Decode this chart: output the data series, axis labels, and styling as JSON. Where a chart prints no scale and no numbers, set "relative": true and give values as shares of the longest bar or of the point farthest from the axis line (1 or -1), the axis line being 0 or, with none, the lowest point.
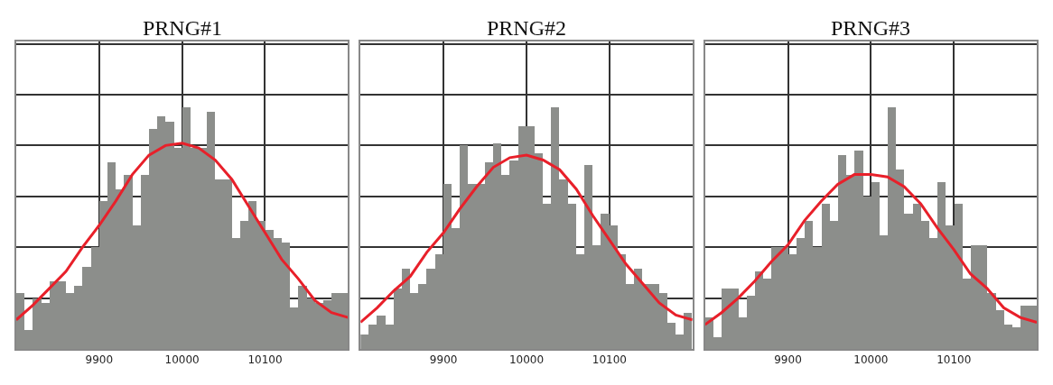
{
  "chart_data": [
    {
      "type": "histogram",
      "title": "PRNG#1",
      "relative": true,
      "xlim": [
        9800,
        10200
      ],
      "xticks": [
        9900,
        10000,
        10100
      ],
      "grid": true,
      "color": "#8c8e8b",
      "bins": [
        9800,
        9810,
        9820,
        9830,
        9840,
        9850,
        9860,
        9870,
        9880,
        9890,
        9900,
        9910,
        9920,
        9930,
        9940,
        9950,
        9960,
        9970,
        9980,
        9990,
        10000,
        10010,
        10020,
        10030,
        10040,
        10050,
        10060,
        10070,
        10080,
        10090,
        10100,
        10110,
        10120,
        10130,
        10140,
        10150,
        10160,
        10170,
        10180,
        10190,
        10200
      ],
      "values": [
        0.23,
        0.08,
        0.21,
        0.19,
        0.28,
        0.28,
        0.23,
        0.26,
        0.34,
        0.42,
        0.61,
        0.77,
        0.66,
        0.72,
        0.51,
        0.72,
        0.91,
        0.96,
        0.94,
        0.83,
        1,
        0.83,
        0.83,
        0.98,
        0.7,
        0.7,
        0.46,
        0.53,
        0.61,
        0.53,
        0.49,
        0.46,
        0.44,
        0.17,
        0.26,
        0.21,
        0.19,
        0.2,
        0.23,
        0.23
      ],
      "series": [
        {
          "type": "line",
          "color": "#e8202a",
          "x": [
            9800,
            9820,
            9840,
            9860,
            9880,
            9900,
            9920,
            9940,
            9960,
            9980,
            10000,
            10020,
            10040,
            10060,
            10080,
            10100,
            10120,
            10140,
            10160,
            10180,
            10200
          ],
          "values": [
            0.12,
            0.18,
            0.25,
            0.32,
            0.42,
            0.51,
            0.61,
            0.72,
            0.8,
            0.84,
            0.85,
            0.83,
            0.78,
            0.7,
            0.59,
            0.48,
            0.37,
            0.29,
            0.2,
            0.15,
            0.13
          ]
        }
      ]
    },
    {
      "type": "histogram",
      "title": "PRNG#2",
      "relative": true,
      "xlim": [
        9800,
        10200
      ],
      "xticks": [
        9900,
        10000,
        10100
      ],
      "grid": true,
      "color": "#8c8e8b",
      "bins": [
        9800,
        9810,
        9820,
        9830,
        9840,
        9850,
        9860,
        9870,
        9880,
        9890,
        9900,
        9910,
        9920,
        9930,
        9940,
        9950,
        9960,
        9970,
        9980,
        9990,
        10000,
        10010,
        10020,
        10030,
        10040,
        10050,
        10060,
        10070,
        10080,
        10090,
        10100,
        10110,
        10120,
        10130,
        10140,
        10150,
        10160,
        10170,
        10180,
        10190,
        10200
      ],
      "values": [
        0.06,
        0.1,
        0.14,
        0.1,
        0.25,
        0.33,
        0.23,
        0.27,
        0.33,
        0.39,
        0.68,
        0.5,
        0.84,
        0.68,
        0.68,
        0.77,
        0.85,
        0.72,
        0.78,
        0.92,
        0.92,
        0.81,
        0.6,
        1,
        0.7,
        0.6,
        0.39,
        0.76,
        0.43,
        0.56,
        0.51,
        0.39,
        0.27,
        0.33,
        0.27,
        0.27,
        0.23,
        0.11,
        0.06,
        0.15
      ],
      "series": [
        {
          "type": "line",
          "color": "#e8202a",
          "x": [
            9800,
            9820,
            9840,
            9860,
            9880,
            9900,
            9920,
            9940,
            9960,
            9980,
            10000,
            10020,
            10040,
            10060,
            10080,
            10100,
            10120,
            10140,
            10160,
            10180,
            10200
          ],
          "values": [
            0.11,
            0.17,
            0.24,
            0.3,
            0.4,
            0.48,
            0.58,
            0.67,
            0.75,
            0.79,
            0.8,
            0.78,
            0.74,
            0.66,
            0.55,
            0.45,
            0.35,
            0.27,
            0.19,
            0.14,
            0.12
          ]
        }
      ]
    },
    {
      "type": "histogram",
      "title": "PRNG#3",
      "relative": true,
      "xlim": [
        9800,
        10200
      ],
      "xticks": [
        9900,
        10000,
        10100
      ],
      "grid": true,
      "color": "#8c8e8b",
      "bins": [
        9800,
        9810,
        9820,
        9830,
        9840,
        9850,
        9860,
        9870,
        9880,
        9890,
        9900,
        9910,
        9920,
        9930,
        9940,
        9950,
        9960,
        9970,
        9980,
        9990,
        10000,
        10010,
        10020,
        10030,
        10040,
        10050,
        10060,
        10070,
        10080,
        10090,
        10100,
        10110,
        10120,
        10130,
        10140,
        10150,
        10160,
        10170,
        10180,
        10190,
        10200
      ],
      "values": [
        0.13,
        0.05,
        0.25,
        0.25,
        0.13,
        0.22,
        0.32,
        0.29,
        0.42,
        0.42,
        0.39,
        0.46,
        0.53,
        0.42,
        0.6,
        0.53,
        0.8,
        0.72,
        0.82,
        0.63,
        0.69,
        0.47,
        1,
        0.74,
        0.56,
        0.6,
        0.53,
        0.46,
        0.69,
        0.51,
        0.6,
        0.29,
        0.43,
        0.43,
        0.23,
        0.16,
        0.1,
        0.09,
        0.18,
        0.18
      ],
      "series": [
        {
          "type": "line",
          "color": "#e8202a",
          "x": [
            9800,
            9820,
            9840,
            9860,
            9880,
            9900,
            9920,
            9940,
            9960,
            9980,
            10000,
            10020,
            10040,
            10060,
            10080,
            10100,
            10120,
            10140,
            10160,
            10180,
            10200
          ],
          "values": [
            0.1,
            0.15,
            0.21,
            0.28,
            0.36,
            0.43,
            0.53,
            0.61,
            0.68,
            0.72,
            0.72,
            0.71,
            0.67,
            0.6,
            0.5,
            0.41,
            0.31,
            0.25,
            0.17,
            0.13,
            0.11
          ]
        }
      ]
    }
  ]
}
